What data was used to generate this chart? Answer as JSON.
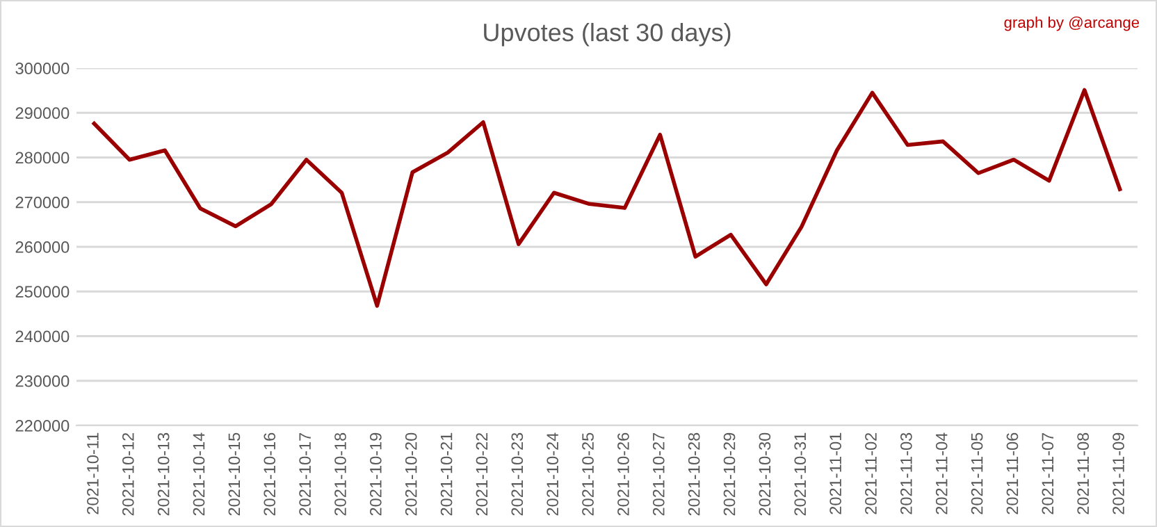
{
  "chart_data": {
    "type": "line",
    "title": "Upvotes (last 30 days)",
    "annotations": [
      "graph by @arcange"
    ],
    "categories": [
      "2021-10-11",
      "2021-10-12",
      "2021-10-13",
      "2021-10-14",
      "2021-10-15",
      "2021-10-16",
      "2021-10-17",
      "2021-10-18",
      "2021-10-19",
      "2021-10-20",
      "2021-10-21",
      "2021-10-22",
      "2021-10-23",
      "2021-10-24",
      "2021-10-25",
      "2021-10-26",
      "2021-10-27",
      "2021-10-28",
      "2021-10-29",
      "2021-10-30",
      "2021-10-31",
      "2021-11-01",
      "2021-11-02",
      "2021-11-03",
      "2021-11-04",
      "2021-11-05",
      "2021-11-06",
      "2021-11-07",
      "2021-11-08",
      "2021-11-09"
    ],
    "series": [
      {
        "color": "#9b0000",
        "values": [
          287600,
          279500,
          281600,
          268600,
          264600,
          269500,
          279500,
          272100,
          246800,
          276700,
          281100,
          287900,
          260600,
          272100,
          269600,
          268700,
          285100,
          257800,
          262700,
          251600,
          264500,
          281600,
          294500,
          282800,
          283600,
          276500,
          279500,
          274800,
          295100,
          272900
        ]
      }
    ],
    "ylim": [
      220000,
      300000
    ],
    "yticks": [
      220000,
      230000,
      240000,
      250000,
      260000,
      270000,
      280000,
      290000,
      300000
    ],
    "grid": "y",
    "marker": "none",
    "line_style": "solid"
  }
}
